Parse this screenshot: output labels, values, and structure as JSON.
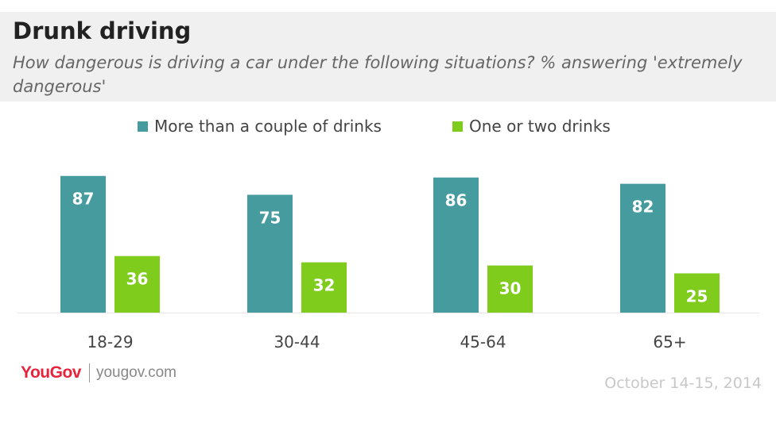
{
  "header": {
    "title": "Drunk driving",
    "subtitle": "How dangerous is driving a car under the following situations? % answering 'extremely dangerous'"
  },
  "footer": {
    "brand": "YouGov",
    "site": "yougov.com",
    "date": "October 14-15, 2014"
  },
  "colors": {
    "series1": "#469b9f",
    "series2": "#7fcc1c"
  },
  "chart_data": {
    "type": "bar",
    "title": "Drunk driving",
    "subtitle": "How dangerous is driving a car under the following situations? % answering 'extremely dangerous'",
    "categories": [
      "18-29",
      "30-44",
      "45-64",
      "65+"
    ],
    "series": [
      {
        "name": "More than a couple of drinks",
        "values": [
          87,
          75,
          86,
          82
        ],
        "color": "#469b9f"
      },
      {
        "name": "One or two drinks",
        "values": [
          36,
          32,
          30,
          25
        ],
        "color": "#7fcc1c"
      }
    ],
    "ylim": [
      0,
      100
    ],
    "grid": false,
    "legend": "top",
    "data_labels": true
  }
}
